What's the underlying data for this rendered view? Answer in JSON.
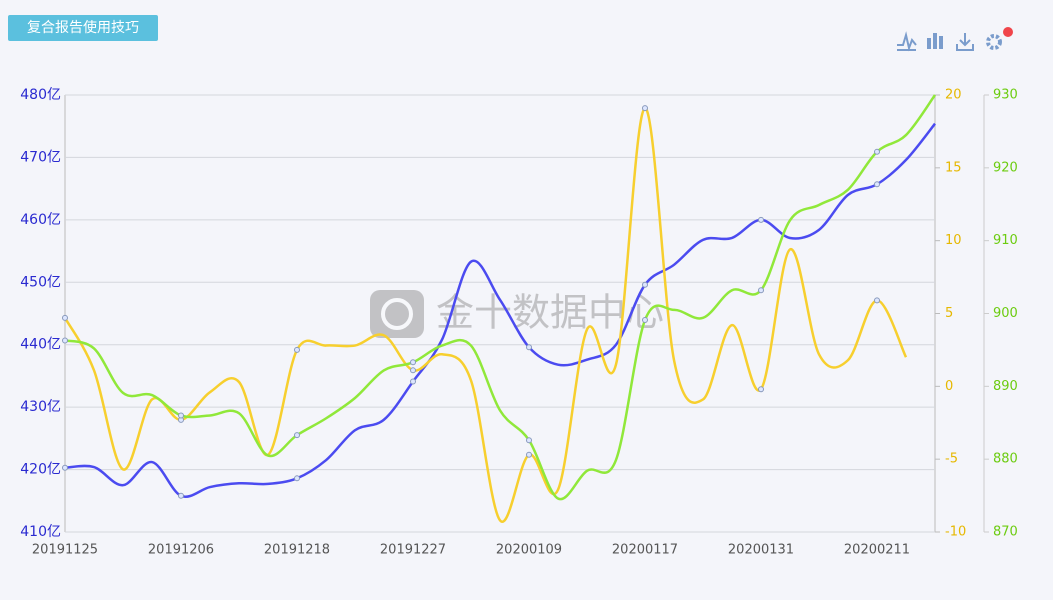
{
  "button": "复合报告使用技巧",
  "watermark": "金十数据中心",
  "chart_data": {
    "type": "line",
    "categories": [
      "20191125",
      null,
      null,
      null,
      "20191206",
      null,
      null,
      null,
      "20191218",
      null,
      null,
      null,
      "20191227",
      null,
      null,
      null,
      "20200109",
      null,
      null,
      null,
      "20200117",
      null,
      null,
      null,
      "20200131",
      null,
      null,
      null,
      "20200211",
      null,
      null
    ],
    "series": [
      {
        "color": "#4b4bf0",
        "axis": "y",
        "values": [
          420.3,
          420.4,
          417.5,
          421.2,
          415.8,
          417.2,
          417.8,
          417.7,
          418.6,
          421.5,
          426.3,
          428,
          434.1,
          440.8,
          453.3,
          447.2,
          439.6,
          436.8,
          437.6,
          440,
          449.6,
          452.8,
          456.8,
          457.1,
          460,
          457.1,
          458.4,
          464,
          465.7,
          469.6,
          475.4
        ]
      },
      {
        "color": "#f7cf2e",
        "axis": "y2",
        "values": [
          4.7,
          1.1,
          -5.7,
          -0.9,
          -2.3,
          -0.4,
          0.3,
          -4.7,
          2.5,
          2.8,
          2.8,
          3.5,
          1.1,
          2.2,
          0.4,
          -9.2,
          -4.7,
          -7.1,
          3.9,
          1.5,
          19.1,
          1.8,
          -0.9,
          4.2,
          -0.2,
          9.4,
          2.2,
          1.8,
          5.9,
          2.0,
          null
        ]
      },
      {
        "color": "#90e83a",
        "axis": "y3",
        "values": [
          896.3,
          895.2,
          889.1,
          888.8,
          886,
          886,
          886.3,
          880.5,
          883.3,
          885.6,
          888.4,
          892.2,
          893.3,
          895.6,
          895.6,
          886.7,
          882.6,
          874.6,
          878.4,
          879.9,
          899.1,
          900.5,
          899.4,
          903.2,
          903.2,
          912.8,
          914.9,
          917,
          922.2,
          924.5,
          930
        ]
      }
    ],
    "ylim": [
      410,
      480
    ],
    "yticks": [
      {
        "value": 410,
        "label": "410亿"
      },
      {
        "value": 420,
        "label": "420亿"
      },
      {
        "value": 430,
        "label": "430亿"
      },
      {
        "value": 440,
        "label": "440亿"
      },
      {
        "value": 450,
        "label": "450亿"
      },
      {
        "value": 460,
        "label": "460亿"
      },
      {
        "value": 470,
        "label": "470亿"
      },
      {
        "value": 480,
        "label": "480亿"
      }
    ],
    "y2lim": [
      -10,
      20
    ],
    "y2ticks": [
      -10,
      -5,
      0,
      5,
      10,
      15,
      20
    ],
    "y3lim": [
      870,
      930
    ],
    "y3ticks": [
      870,
      880,
      890,
      900,
      910,
      920,
      930
    ],
    "grid": true
  }
}
